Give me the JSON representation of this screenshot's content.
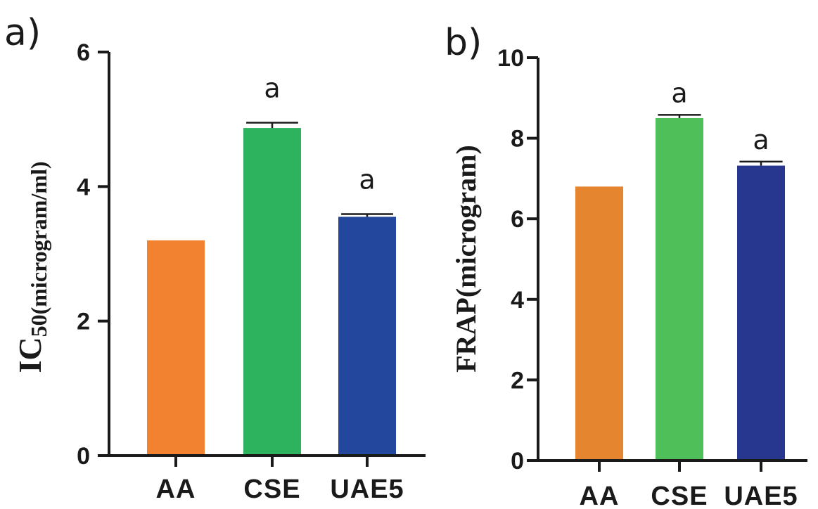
{
  "chart_data": [
    {
      "type": "bar",
      "panel_label": "a)",
      "ylabel_main": "IC",
      "ylabel_sub": "50(microgram/ml)",
      "categories": [
        "AA",
        "CSE",
        "UAE5"
      ],
      "values": [
        3.2,
        4.87,
        3.55
      ],
      "errors": [
        0,
        0.08,
        0.04
      ],
      "annotations": [
        "",
        "a",
        "a"
      ],
      "colors": [
        "#f28130",
        "#2db35e",
        "#23479c"
      ],
      "ylim": [
        0,
        6
      ],
      "yticks": [
        0,
        2,
        4,
        6
      ],
      "ytick_labels": [
        "0",
        "2",
        "4",
        "6"
      ]
    },
    {
      "type": "bar",
      "panel_label": "b)",
      "ylabel_main": "FRAP(microgram)",
      "ylabel_sub": "",
      "categories": [
        "AA",
        "CSE",
        "UAE5"
      ],
      "values": [
        6.8,
        8.5,
        7.32
      ],
      "errors": [
        0,
        0.08,
        0.1
      ],
      "annotations": [
        "",
        "a",
        "a"
      ],
      "colors": [
        "#e5852f",
        "#4fbf5a",
        "#27378f"
      ],
      "ylim": [
        0,
        10
      ],
      "yticks": [
        0,
        2,
        4,
        6,
        8,
        10
      ],
      "ytick_labels": [
        "0",
        "2",
        "4",
        "6",
        "8",
        "10"
      ]
    }
  ]
}
